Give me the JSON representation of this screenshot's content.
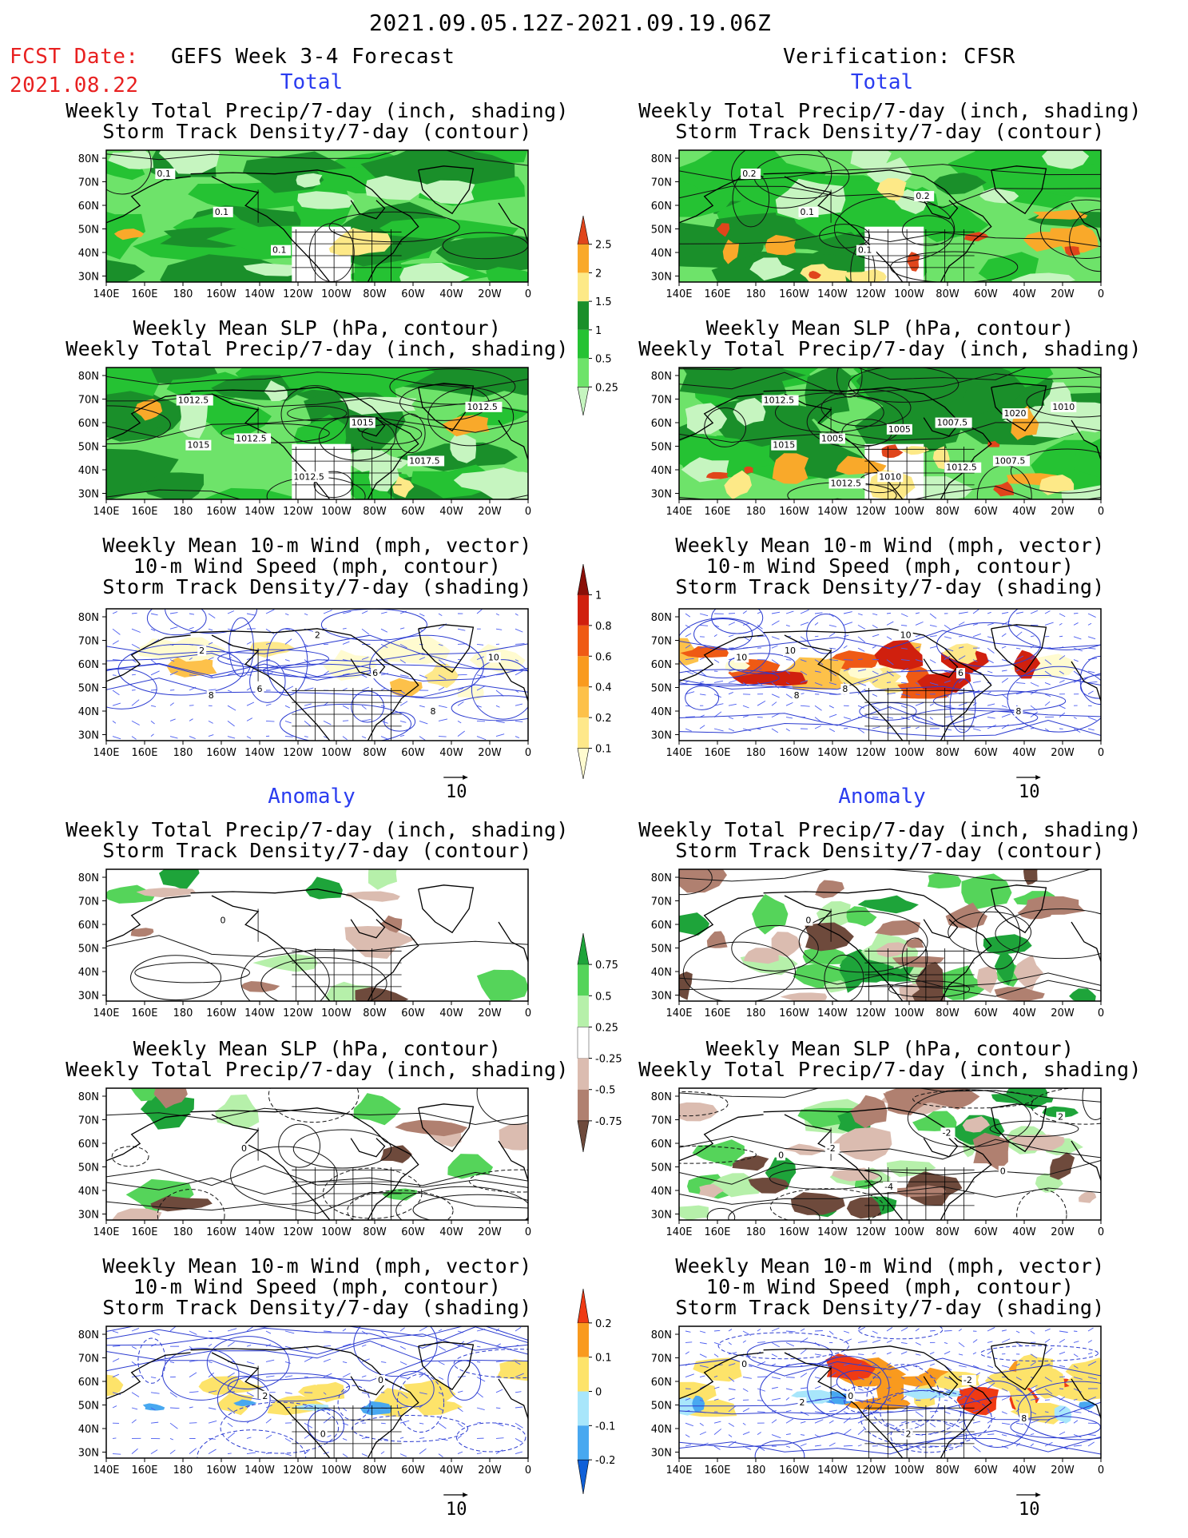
{
  "header": {
    "date_range": "2021.09.05.12Z-2021.09.19.06Z",
    "fcst_label": "FCST Date:",
    "fcst_date": "2021.08.22",
    "left_title": "GEFS Week 3-4 Forecast",
    "right_title": "Verification: CFSR"
  },
  "sections": {
    "total": "Total",
    "anomaly": "Anomaly"
  },
  "panel_titles": {
    "precip_storm": [
      "Weekly Total Precip/7-day (inch, shading)",
      "Storm Track Density/7-day (contour)"
    ],
    "slp_precip": [
      "Weekly Mean SLP (hPa, contour)",
      "Weekly Total Precip/7-day (inch, shading)"
    ],
    "wind_storm": [
      "Weekly Mean 10-m Wind (mph, vector)",
      "10-m Wind Speed (mph, contour)",
      "Storm Track Density/7-day (shading)"
    ]
  },
  "axes": {
    "lat_labels": [
      "80N",
      "70N",
      "60N",
      "50N",
      "40N",
      "30N"
    ],
    "lon_labels": [
      "140E",
      "160E",
      "180",
      "160W",
      "140W",
      "120W",
      "100W",
      "80W",
      "60W",
      "40W",
      "20W",
      "0"
    ]
  },
  "vector_ref": "10",
  "colorbars": {
    "precip_total": {
      "levels": [
        "0.25",
        "0.5",
        "1",
        "1.5",
        "2",
        "2.5"
      ],
      "colors": [
        "#c6f5c0",
        "#6ee36a",
        "#25c233",
        "#1a8f2a",
        "#fde987",
        "#f9a92a",
        "#e0451b"
      ]
    },
    "storm_total": {
      "levels": [
        "0.1",
        "0.2",
        "0.4",
        "0.6",
        "0.8",
        "1"
      ],
      "colors": [
        "#fffbd0",
        "#fee88a",
        "#fdc14a",
        "#f99a1e",
        "#ef5a14",
        "#d0200e",
        "#8a0f08"
      ]
    },
    "precip_anom": {
      "levels": [
        "0.75",
        "0.5",
        "0.25",
        "-0.25",
        "-0.5",
        "-0.75"
      ],
      "colors": [
        "#1ea43a",
        "#55d45a",
        "#b6f0aa",
        "#ffffff",
        "#dbbcb0",
        "#b08070",
        "#6e4a3c"
      ]
    },
    "storm_anom": {
      "levels": [
        "0.2",
        "0.1",
        "0",
        "-0.1",
        "-0.2"
      ],
      "colors": [
        "#ef3a14",
        "#f99a1e",
        "#fde36a",
        "#a8e6fb",
        "#48a8f0",
        "#1060d8"
      ]
    }
  },
  "contour_labels": {
    "p1_left": [
      "0.1",
      "0.1",
      "0.1"
    ],
    "p1_right": [
      "0.2",
      "0.1",
      "0.1",
      "0.2"
    ],
    "p2_left": [
      "1012.5",
      "1012.5",
      "1012.5",
      "1015",
      "1017.5",
      "1012.5",
      "1015"
    ],
    "p2_right": [
      "1012.5",
      "1005",
      "1010",
      "1007.5",
      "1007.5",
      "1010",
      "1015",
      "1012.5",
      "1005",
      "1012.5",
      "1020"
    ],
    "p3_left": [
      "2",
      "6",
      "2",
      "6",
      "8",
      "10",
      "8"
    ],
    "p3_right": [
      "10",
      "8",
      "10",
      "6",
      "8",
      "10",
      "8"
    ],
    "p4_left": [
      "0"
    ],
    "p4_right": [
      "0"
    ],
    "p5_left": [
      "0"
    ],
    "p5_right": [
      "-2",
      "-4",
      "-2",
      "0",
      "2",
      "0"
    ],
    "p6_left": [
      "2",
      "0",
      "0"
    ],
    "p6_right": [
      "0",
      "2",
      "-2",
      "8",
      "0",
      "2"
    ]
  }
}
